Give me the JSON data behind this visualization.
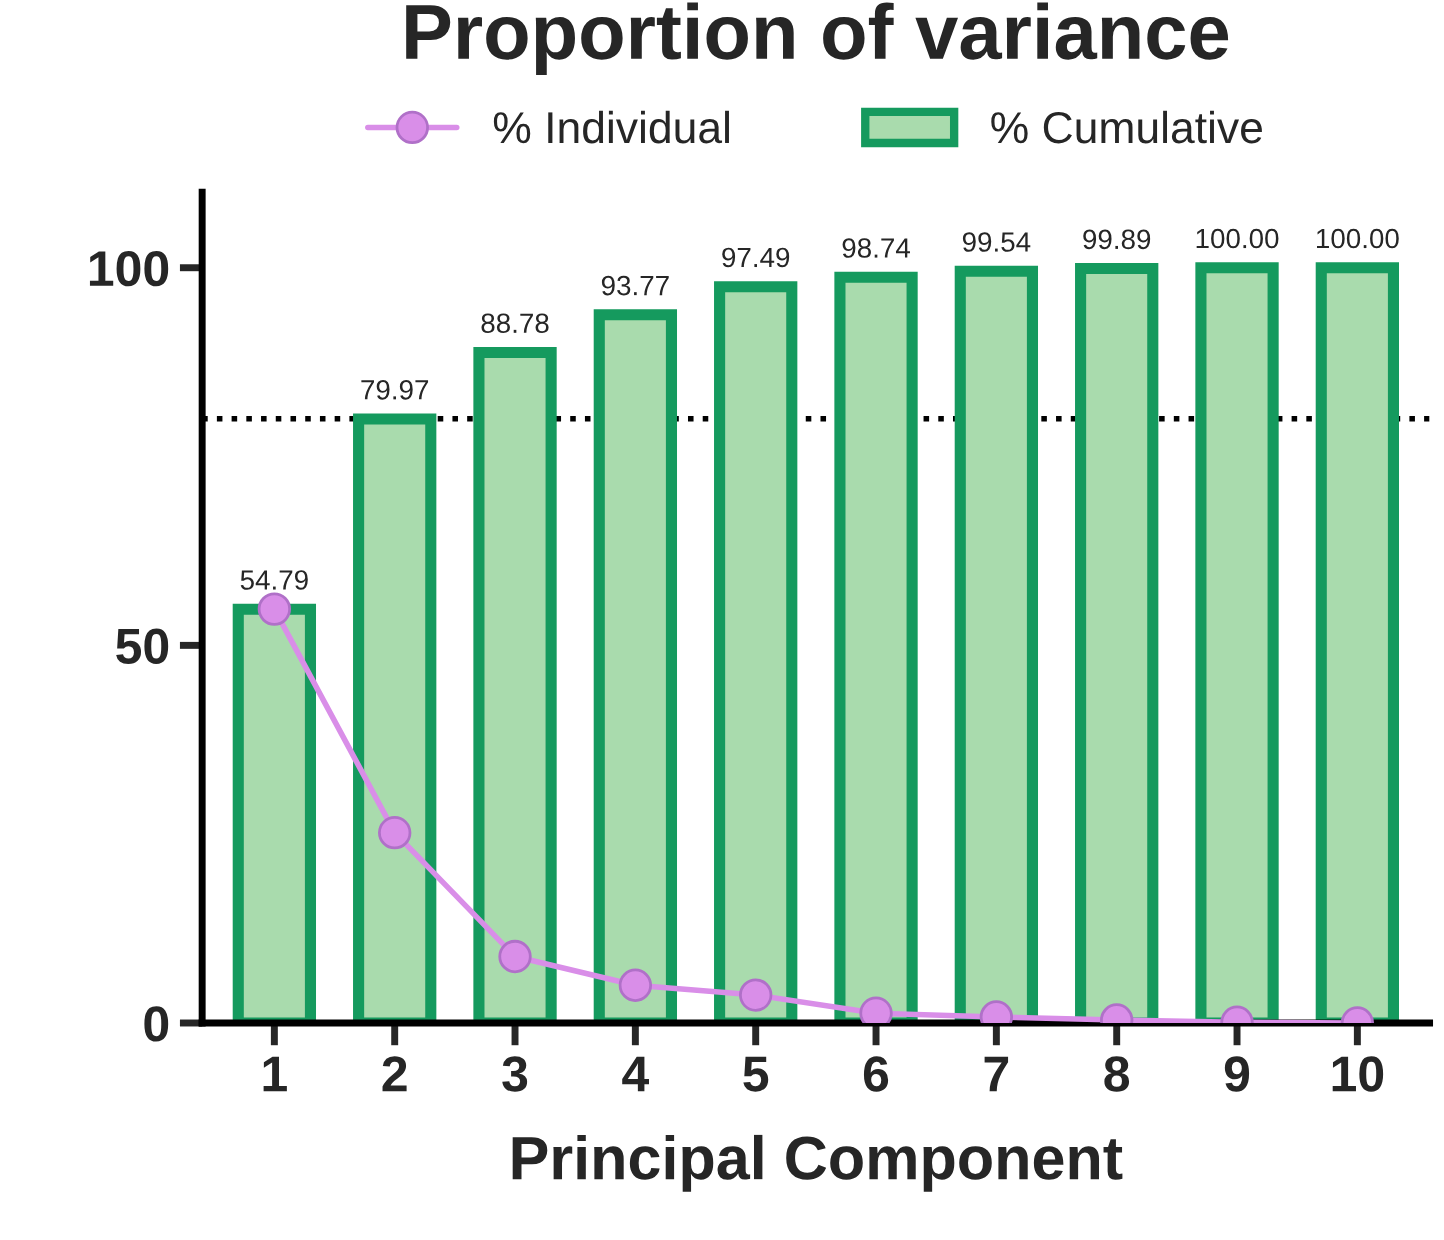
{
  "chart_data": {
    "type": "bar",
    "title": "Proportion of variance",
    "xlabel": "Principal Component",
    "categories": [
      "1",
      "2",
      "3",
      "4",
      "5",
      "6",
      "7",
      "8",
      "9",
      "10"
    ],
    "series": [
      {
        "name": "% Cumulative",
        "color": "#159a5e",
        "values": [
          54.79,
          79.97,
          88.78,
          93.77,
          97.49,
          98.74,
          99.54,
          99.89,
          100.0,
          100.0
        ],
        "value_labels": [
          "54.79",
          "79.97",
          "88.78",
          "93.77",
          "97.49",
          "98.74",
          "99.54",
          "99.89",
          "100.00",
          "100.00"
        ]
      },
      {
        "name": "% Individual",
        "type": "line",
        "color": "#d98ee8",
        "values": [
          54.8,
          25.2,
          8.8,
          5.0,
          3.7,
          1.3,
          0.8,
          0.4,
          0.1,
          0.0
        ],
        "marker": "circle",
        "line_style": "solid"
      }
    ],
    "ylim": [
      0,
      110
    ],
    "yticks": [
      0,
      50,
      100
    ],
    "ref_lines": [
      {
        "axis": "y",
        "value": 80,
        "line_style": "dotted",
        "color": "#000000"
      }
    ],
    "legend": "top",
    "grid": false
  }
}
